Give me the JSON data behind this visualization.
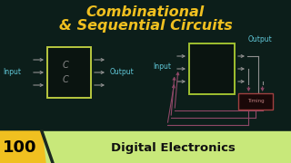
{
  "bg_color": "#0c1e1a",
  "title_line1": "Combinational",
  "title_line2": "& Sequential Circuits",
  "title_color": "#f0c020",
  "title_fontsize": 11.5,
  "badge_number": "100",
  "badge_bg": "#f0c020",
  "badge_text_color": "#000000",
  "subtitle": "Digital Electronics",
  "subtitle_bg": "#c8e87a",
  "subtitle_color": "#111111",
  "input_color": "#60c8d8",
  "output_color": "#60c8d8",
  "comb_box_edge": "#b8c840",
  "comb_box_face": "#0a1410",
  "comb_c_color": "#888888",
  "arrow_color": "#909090",
  "seq_box_edge": "#a0c030",
  "seq_box_face": "#0a1410",
  "seq_arrow_color": "#909090",
  "timing_edge": "#a04040",
  "timing_face": "#1a0808",
  "timing_text": "#c08080",
  "feedback_color": "#904868",
  "badge_slash_color": "#f0c020"
}
